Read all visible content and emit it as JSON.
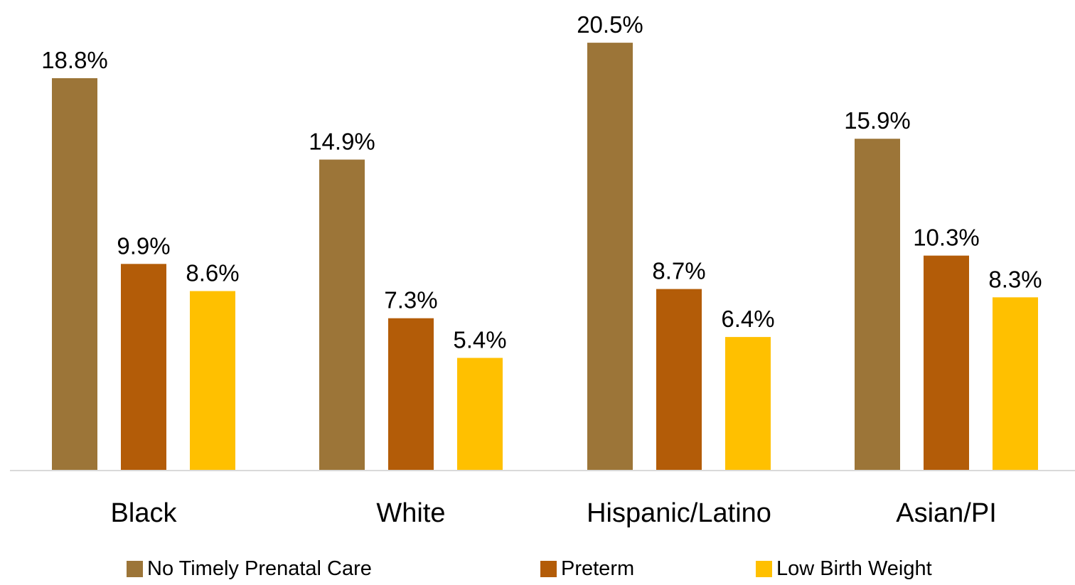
{
  "chart_data": {
    "type": "bar",
    "title": "",
    "xlabel": "",
    "ylabel": "",
    "ylim": [
      0,
      22
    ],
    "grid": false,
    "legend_position": "bottom",
    "categories": [
      "Black",
      "White",
      "Hispanic/Latino",
      "Asian/PI"
    ],
    "series": [
      {
        "name": "No Timely Prenatal Care",
        "color": "#9C7538",
        "values": [
          18.8,
          14.9,
          20.5,
          15.9
        ],
        "labels": [
          "18.8%",
          "14.9%",
          "20.5%",
          "15.9%"
        ]
      },
      {
        "name": "Preterm",
        "color": "#B35C08",
        "values": [
          9.9,
          7.3,
          8.7,
          10.3
        ],
        "labels": [
          "9.9%",
          "7.3%",
          "8.7%",
          "10.3%"
        ]
      },
      {
        "name": "Low Birth Weight",
        "color": "#FFC000",
        "values": [
          8.6,
          5.4,
          6.4,
          8.3
        ],
        "labels": [
          "8.6%",
          "5.4%",
          "6.4%",
          "8.3%"
        ]
      }
    ]
  }
}
